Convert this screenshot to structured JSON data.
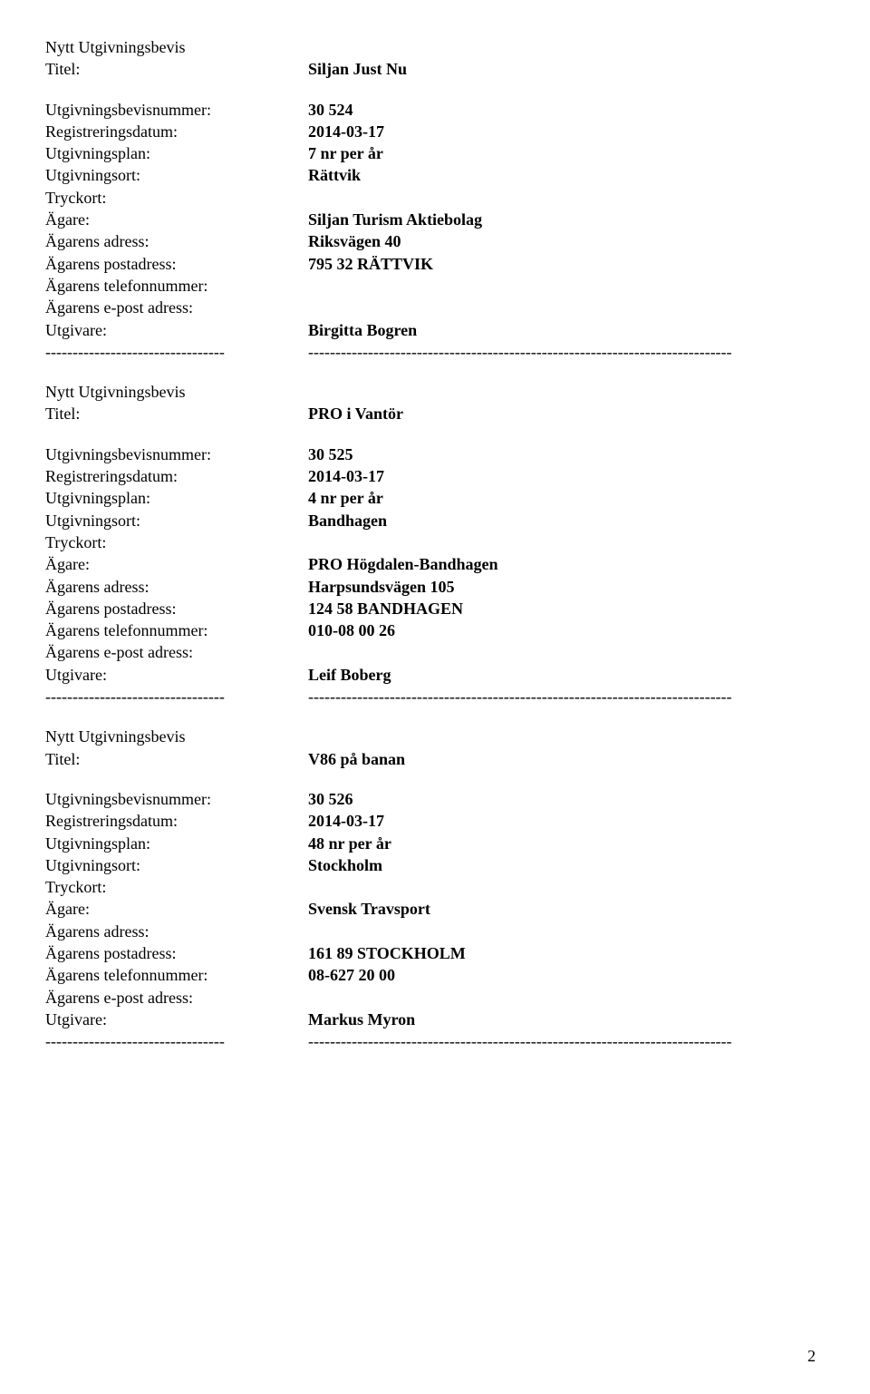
{
  "labels": {
    "header": "Nytt Utgivningsbevis",
    "titel": "Titel:",
    "utgivningsbevisnummer": "Utgivningsbevisnummer:",
    "registreringsdatum": "Registreringsdatum:",
    "utgivningsplan": "Utgivningsplan:",
    "utgivningsort": "Utgivningsort:",
    "tryckort": "Tryckort:",
    "agare": "Ägare:",
    "agarens_adress": "Ägarens adress:",
    "agarens_postadress": "Ägarens postadress:",
    "agarens_telefonnummer": "Ägarens telefonnummer:",
    "agarens_epost": "Ägarens e-post adress:",
    "utgivare": "Utgivare:"
  },
  "divider_left": "---------------------------------",
  "divider_right": "------------------------------------------------------------------------------",
  "records": [
    {
      "titel": "Siljan Just Nu",
      "utgivningsbevisnummer": "30 524",
      "registreringsdatum": "2014-03-17",
      "utgivningsplan": "7 nr per år",
      "utgivningsort": "Rättvik",
      "tryckort": "",
      "agare": "Siljan Turism Aktiebolag",
      "agarens_adress": "Riksvägen 40",
      "agarens_postadress": "795 32 RÄTTVIK",
      "agarens_telefonnummer": "",
      "agarens_epost": "",
      "utgivare": "Birgitta Bogren"
    },
    {
      "titel": "PRO i Vantör",
      "utgivningsbevisnummer": "30 525",
      "registreringsdatum": "2014-03-17",
      "utgivningsplan": "4 nr per år",
      "utgivningsort": "Bandhagen",
      "tryckort": "",
      "agare": "PRO Högdalen-Bandhagen",
      "agarens_adress": "Harpsundsvägen 105",
      "agarens_postadress": "124 58 BANDHAGEN",
      "agarens_telefonnummer": "010-08 00 26",
      "agarens_epost": "",
      "utgivare": "Leif Boberg"
    },
    {
      "titel": "V86 på banan",
      "utgivningsbevisnummer": "30 526",
      "registreringsdatum": "2014-03-17",
      "utgivningsplan": "48 nr per år",
      "utgivningsort": "Stockholm",
      "tryckort": "",
      "agare": "Svensk Travsport",
      "agarens_adress": "",
      "agarens_postadress": "161 89 STOCKHOLM",
      "agarens_telefonnummer": "08-627 20 00",
      "agarens_epost": "",
      "utgivare": "Markus Myron"
    }
  ],
  "page_number": "2"
}
